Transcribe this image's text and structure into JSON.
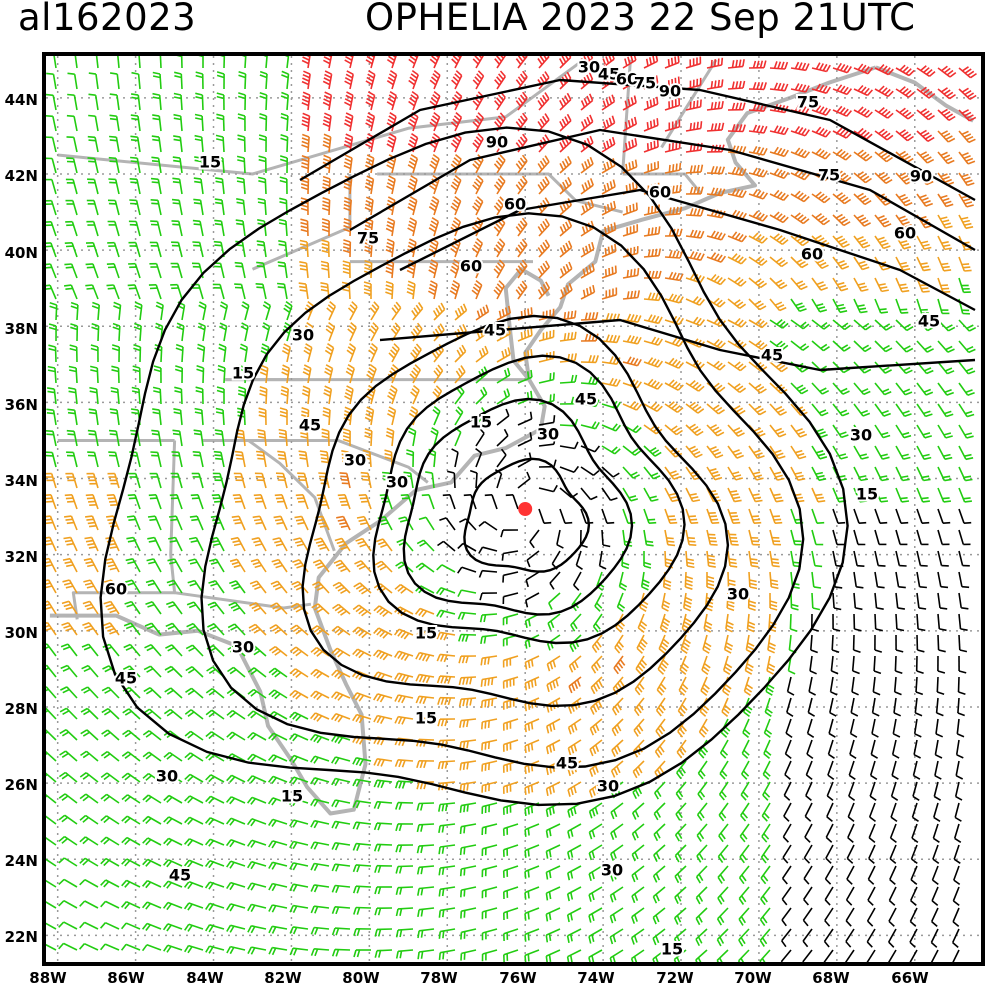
{
  "header": {
    "storm_id": "al162023",
    "title": "OPHELIA 2023 22 Sep 21UTC"
  },
  "axes": {
    "lat_labels": [
      "44N",
      "42N",
      "40N",
      "38N",
      "36N",
      "34N",
      "32N",
      "30N",
      "28N",
      "26N",
      "24N",
      "22N"
    ],
    "lon_labels": [
      "88W",
      "86W",
      "84W",
      "82W",
      "80W",
      "78W",
      "76W",
      "74W",
      "72W",
      "70W",
      "68W",
      "66W"
    ]
  },
  "contour_labels": [
    {
      "text": "30"
    },
    {
      "text": "45"
    },
    {
      "text": "60"
    },
    {
      "text": "75"
    },
    {
      "text": "90"
    },
    {
      "text": "75"
    },
    {
      "text": "90"
    },
    {
      "text": "75"
    },
    {
      "text": "90"
    },
    {
      "text": "60"
    },
    {
      "text": "60"
    },
    {
      "text": "60"
    },
    {
      "text": "60"
    },
    {
      "text": "75"
    },
    {
      "text": "60"
    },
    {
      "text": "15"
    },
    {
      "text": "45"
    },
    {
      "text": "45"
    },
    {
      "text": "45"
    },
    {
      "text": "30"
    },
    {
      "text": "15"
    },
    {
      "text": "45"
    },
    {
      "text": "45"
    },
    {
      "text": "30"
    },
    {
      "text": "30"
    },
    {
      "text": "15"
    },
    {
      "text": "30"
    },
    {
      "text": "30"
    },
    {
      "text": "60"
    },
    {
      "text": "30"
    },
    {
      "text": "15"
    },
    {
      "text": "45"
    },
    {
      "text": "15"
    },
    {
      "text": "45"
    },
    {
      "text": "30"
    },
    {
      "text": "15"
    },
    {
      "text": "30"
    },
    {
      "text": "45"
    },
    {
      "text": "30"
    },
    {
      "text": "30"
    },
    {
      "text": "15"
    },
    {
      "text": "15"
    }
  ],
  "colors": {
    "frame": "#000000",
    "coast": "#b4b4b4",
    "grid": "#9a9a9a",
    "contour": "#000000",
    "barb_calm": "#000000",
    "barb_green": "#22cc11",
    "barb_orange": "#f0a020",
    "barb_darkorange": "#e87a20",
    "barb_red": "#f03030",
    "center_marker": "#ff3333"
  },
  "storm_center": {
    "lon": -76.0,
    "lat": 33.2,
    "marker": "red-dot"
  },
  "map": {
    "lon_range": [
      -88.3,
      -64.3
    ],
    "lat_range": [
      21.3,
      45.1
    ],
    "grid_spacing_deg": 2
  }
}
